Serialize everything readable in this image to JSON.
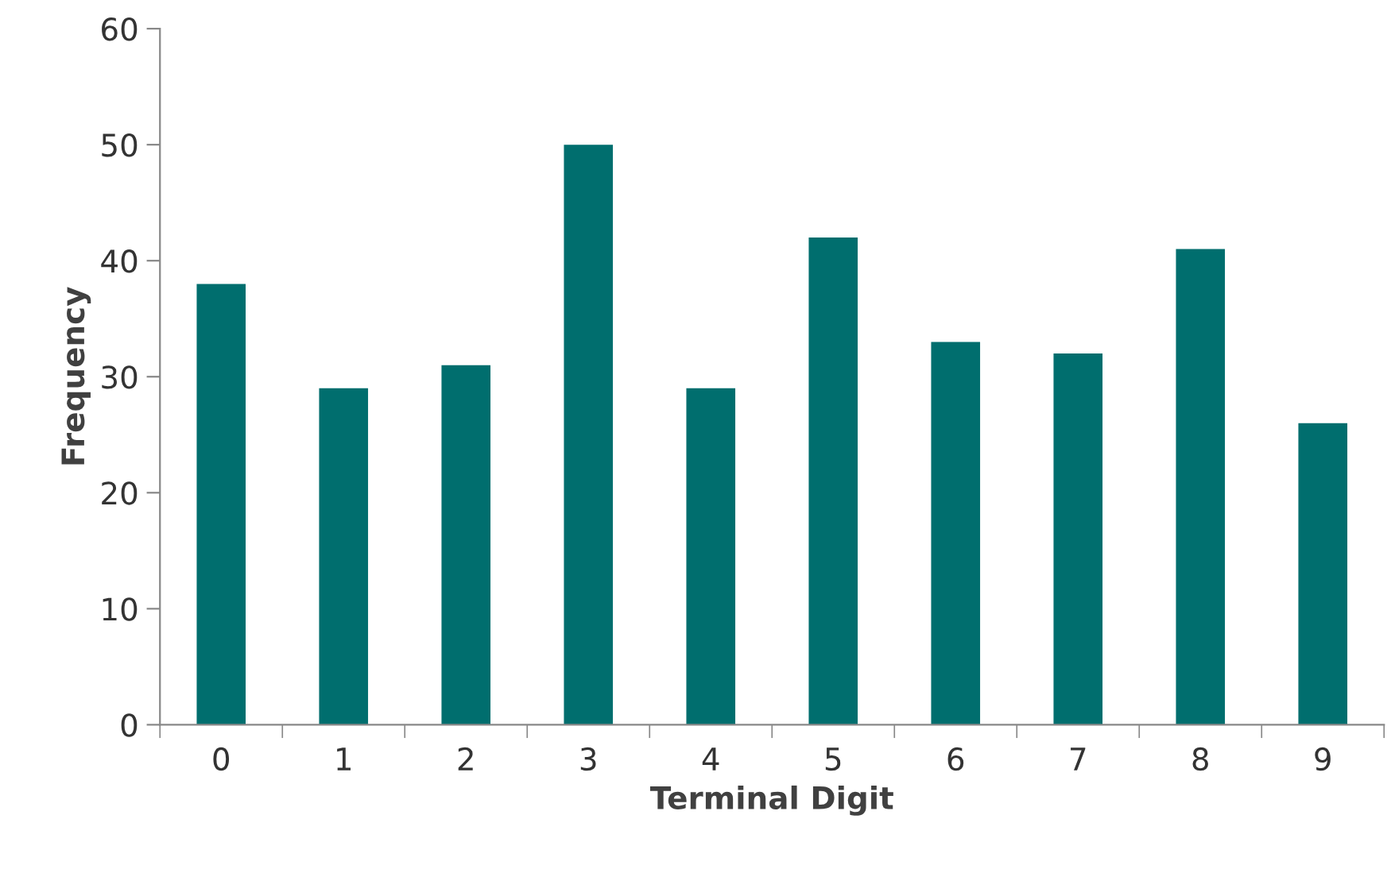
{
  "chart_data": {
    "type": "bar",
    "xlabel": "Terminal Digit",
    "ylabel": "Frequency",
    "categories": [
      "0",
      "1",
      "2",
      "3",
      "4",
      "5",
      "6",
      "7",
      "8",
      "9"
    ],
    "values": [
      38,
      29,
      31,
      50,
      29,
      42,
      33,
      32,
      41,
      26
    ],
    "color": "#006e6e",
    "ylim": [
      0,
      60
    ],
    "yticks": [
      0,
      10,
      20,
      30,
      40,
      50,
      60
    ],
    "grid": false
  }
}
